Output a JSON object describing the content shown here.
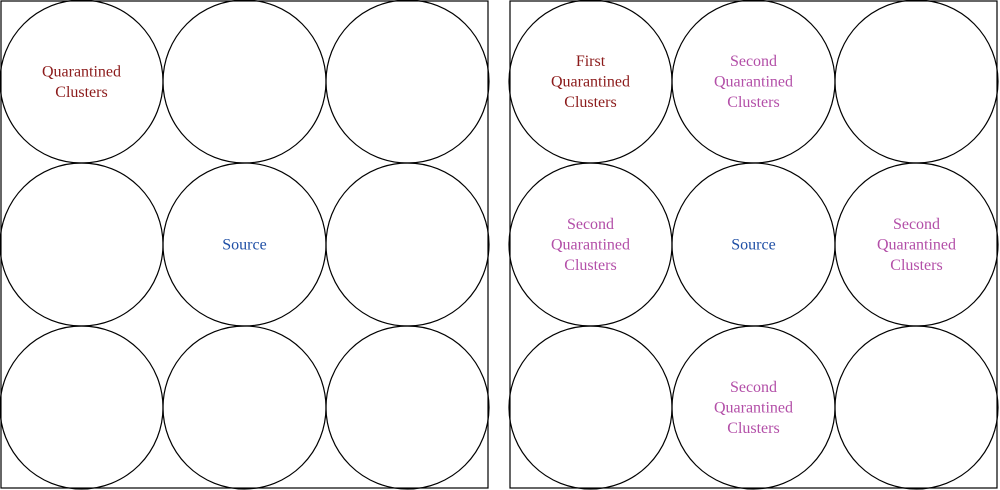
{
  "colors": {
    "outline": "#000000",
    "quarantined_first": "#8b1a1a",
    "quarantined_second": "#b34fa8",
    "source": "#1f4fa5"
  },
  "panels": [
    {
      "name": "left-panel",
      "cells": [
        {
          "lines": [
            "Quarantined",
            "Clusters"
          ],
          "color": "quarantined_first"
        },
        {
          "lines": []
        },
        {
          "lines": []
        },
        {
          "lines": []
        },
        {
          "lines": [
            "Source"
          ],
          "color": "source"
        },
        {
          "lines": []
        },
        {
          "lines": []
        },
        {
          "lines": []
        },
        {
          "lines": []
        }
      ]
    },
    {
      "name": "right-panel",
      "cells": [
        {
          "lines": [
            "First",
            "Quarantined",
            "Clusters"
          ],
          "color": "quarantined_first"
        },
        {
          "lines": [
            "Second",
            "Quarantined",
            "Clusters"
          ],
          "color": "quarantined_second"
        },
        {
          "lines": []
        },
        {
          "lines": [
            "Second",
            "Quarantined",
            "Clusters"
          ],
          "color": "quarantined_second"
        },
        {
          "lines": [
            "Source"
          ],
          "color": "source"
        },
        {
          "lines": [
            "Second",
            "Quarantined",
            "Clusters"
          ],
          "color": "quarantined_second"
        },
        {
          "lines": []
        },
        {
          "lines": [
            "Second",
            "Quarantined",
            "Clusters"
          ],
          "color": "quarantined_second"
        },
        {
          "lines": []
        }
      ]
    }
  ]
}
